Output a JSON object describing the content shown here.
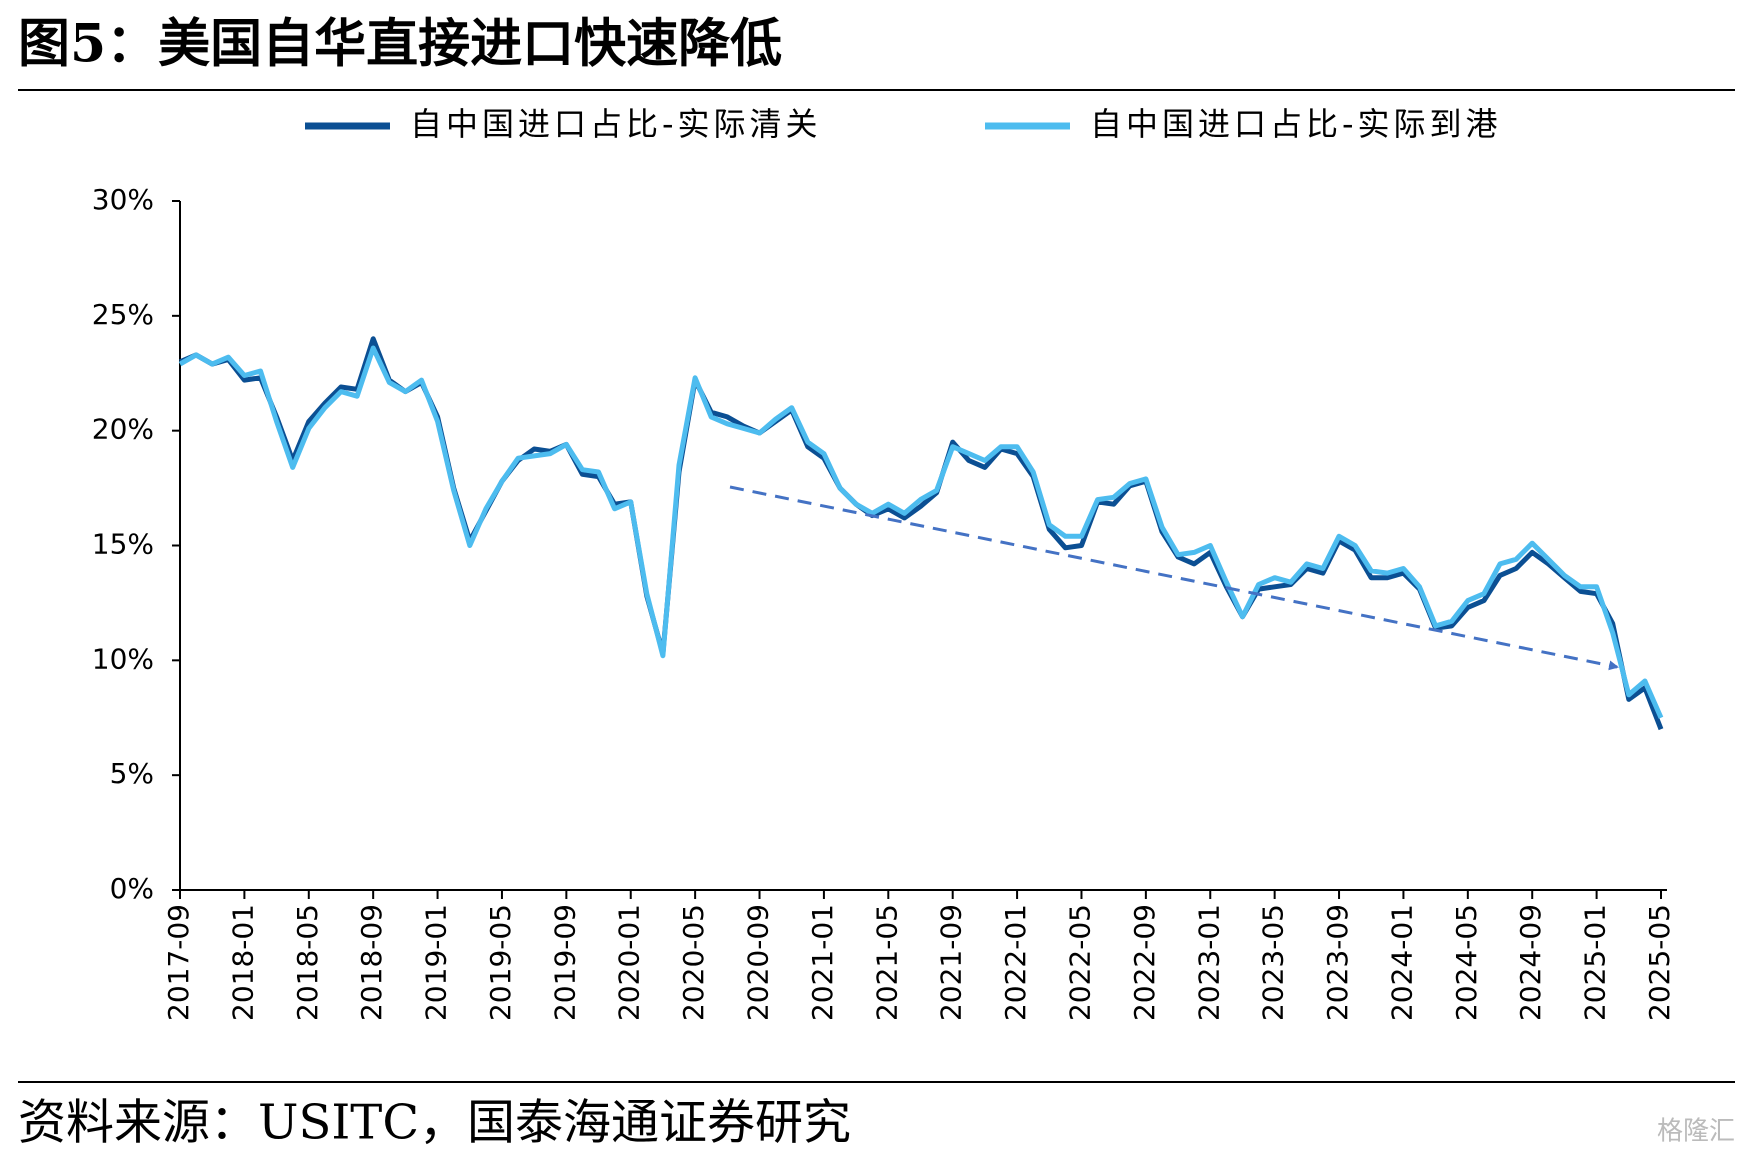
{
  "chart_data": {
    "type": "line",
    "title": "图5：美国自华直接进口快速降低",
    "source": "资料来源：USITC，国泰海通证券研究",
    "watermark": "格隆汇",
    "categories": [
      "2017-09",
      null,
      null,
      null,
      "2018-01",
      null,
      null,
      null,
      "2018-05",
      null,
      null,
      null,
      "2018-09",
      null,
      null,
      null,
      "2019-01",
      null,
      null,
      null,
      "2019-05",
      null,
      null,
      null,
      "2019-09",
      null,
      null,
      null,
      "2020-01",
      null,
      null,
      null,
      "2020-05",
      null,
      null,
      null,
      "2020-09",
      null,
      null,
      null,
      "2021-01",
      null,
      null,
      null,
      "2021-05",
      null,
      null,
      null,
      "2021-09",
      null,
      null,
      null,
      "2022-01",
      null,
      null,
      null,
      "2022-05",
      null,
      null,
      null,
      "2022-09",
      null,
      null,
      null,
      "2023-01",
      null,
      null,
      null,
      "2023-05",
      null,
      null,
      null,
      "2023-09",
      null,
      null,
      null,
      "2024-01",
      null,
      null,
      null,
      "2024-05",
      null,
      null,
      null,
      "2024-09",
      null,
      null,
      null,
      "2025-01",
      null,
      null,
      null,
      "2025-05"
    ],
    "series": [
      {
        "name": "自中国进口占比-实际清关",
        "color": "#0b4f93",
        "values": [
          23.0,
          23.3,
          22.9,
          23.1,
          22.2,
          22.3,
          20.6,
          18.7,
          20.4,
          21.2,
          21.9,
          21.8,
          24.0,
          22.2,
          21.7,
          22.1,
          20.6,
          17.5,
          15.2,
          16.5,
          17.8,
          18.7,
          19.2,
          19.1,
          19.4,
          18.1,
          18.0,
          16.8,
          16.9,
          12.8,
          10.3,
          18.2,
          22.2,
          20.8,
          20.6,
          20.2,
          19.9,
          20.4,
          20.9,
          19.3,
          18.8,
          17.5,
          16.8,
          16.3,
          16.6,
          16.2,
          16.7,
          17.3,
          19.5,
          18.7,
          18.4,
          19.2,
          19.0,
          18.0,
          15.7,
          14.9,
          15.0,
          16.9,
          16.8,
          17.6,
          17.8,
          15.6,
          14.5,
          14.2,
          14.7,
          13.2,
          11.9,
          13.1,
          13.2,
          13.3,
          14.0,
          13.8,
          15.2,
          14.8,
          13.6,
          13.6,
          13.8,
          13.1,
          11.4,
          11.5,
          12.3,
          12.6,
          13.7,
          14.0,
          14.7,
          14.2,
          13.6,
          13.0,
          12.9,
          11.6,
          8.3,
          8.8,
          7.0
        ]
      },
      {
        "name": "自中国进口占比-实际到港",
        "color": "#4dbcef",
        "values": [
          22.9,
          23.3,
          22.9,
          23.2,
          22.4,
          22.6,
          20.4,
          18.4,
          20.1,
          21.0,
          21.7,
          21.5,
          23.6,
          22.1,
          21.7,
          22.2,
          20.4,
          17.4,
          15.0,
          16.6,
          17.8,
          18.8,
          18.9,
          19.0,
          19.4,
          18.3,
          18.2,
          16.6,
          16.9,
          12.9,
          10.2,
          18.5,
          22.3,
          20.6,
          20.3,
          20.1,
          19.9,
          20.5,
          21.0,
          19.5,
          19.0,
          17.5,
          16.8,
          16.4,
          16.8,
          16.4,
          17.0,
          17.4,
          19.3,
          19.0,
          18.7,
          19.3,
          19.3,
          18.2,
          15.9,
          15.4,
          15.4,
          17.0,
          17.1,
          17.7,
          17.9,
          15.8,
          14.6,
          14.7,
          15.0,
          13.4,
          11.9,
          13.3,
          13.6,
          13.4,
          14.2,
          14.0,
          15.4,
          15.0,
          13.9,
          13.8,
          14.0,
          13.2,
          11.5,
          11.7,
          12.6,
          12.9,
          14.2,
          14.4,
          15.1,
          14.4,
          13.7,
          13.2,
          13.2,
          11.2,
          8.5,
          9.1,
          7.5
        ]
      }
    ],
    "ylim": [
      0,
      30
    ],
    "yticks": [
      {
        "value": 0,
        "label": "0%"
      },
      {
        "value": 5,
        "label": "5%"
      },
      {
        "value": 10,
        "label": "10%"
      },
      {
        "value": 15,
        "label": "15%"
      },
      {
        "value": 20,
        "label": "20%"
      },
      {
        "value": 25,
        "label": "25%"
      },
      {
        "value": 30,
        "label": "30%"
      }
    ],
    "grid": false,
    "legend": "top"
  }
}
